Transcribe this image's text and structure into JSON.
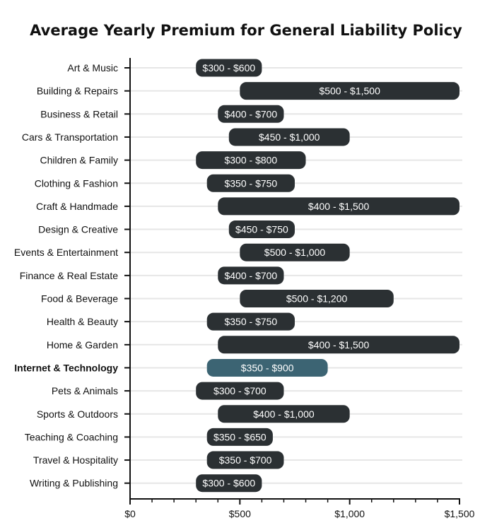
{
  "chart_data": {
    "type": "bar",
    "orientation": "horizontal-range",
    "title": "Average Yearly Premium for General Liability Policy",
    "xlabel": "",
    "ylabel": "",
    "xlim": [
      0,
      1500
    ],
    "x_ticks": [
      0,
      500,
      1000,
      1500
    ],
    "x_tick_labels": [
      "$0",
      "$500",
      "$1,000",
      "$1,500"
    ],
    "x_minor_step": 100,
    "grid": true,
    "colors": {
      "default": "#2b3033",
      "highlight": "#3c6473",
      "grid": "#e6e6e6",
      "axis": "#111111"
    },
    "highlight_category": "Internet & Technology",
    "categories": [
      "Art & Music",
      "Building & Repairs",
      "Business & Retail",
      "Cars & Transportation",
      "Children & Family",
      "Clothing & Fashion",
      "Craft & Handmade",
      "Design & Creative",
      "Events & Entertainment",
      "Finance & Real Estate",
      "Food & Beverage",
      "Health & Beauty",
      "Home & Garden",
      "Internet & Technology",
      "Pets & Animals",
      "Sports & Outdoors",
      "Teaching & Coaching",
      "Travel & Hospitality",
      "Writing & Publishing"
    ],
    "ranges": [
      [
        300,
        600
      ],
      [
        500,
        1500
      ],
      [
        400,
        700
      ],
      [
        450,
        1000
      ],
      [
        300,
        800
      ],
      [
        350,
        750
      ],
      [
        400,
        1500
      ],
      [
        450,
        750
      ],
      [
        500,
        1000
      ],
      [
        400,
        700
      ],
      [
        500,
        1200
      ],
      [
        350,
        750
      ],
      [
        400,
        1500
      ],
      [
        350,
        900
      ],
      [
        300,
        700
      ],
      [
        400,
        1000
      ],
      [
        350,
        650
      ],
      [
        350,
        700
      ],
      [
        300,
        600
      ]
    ],
    "range_labels": [
      "$300 - $600",
      "$500 - $1,500",
      "$400 - $700",
      "$450 - $1,000",
      "$300 - $800",
      "$350 - $750",
      "$400 - $1,500",
      "$450 - $750",
      "$500 - $1,000",
      "$400 - $700",
      "$500 - $1,200",
      "$350 - $750",
      "$400 - $1,500",
      "$350 - $900",
      "$300 - $700",
      "$400 - $1,000",
      "$350 - $650",
      "$350 - $700",
      "$300 - $600"
    ]
  }
}
